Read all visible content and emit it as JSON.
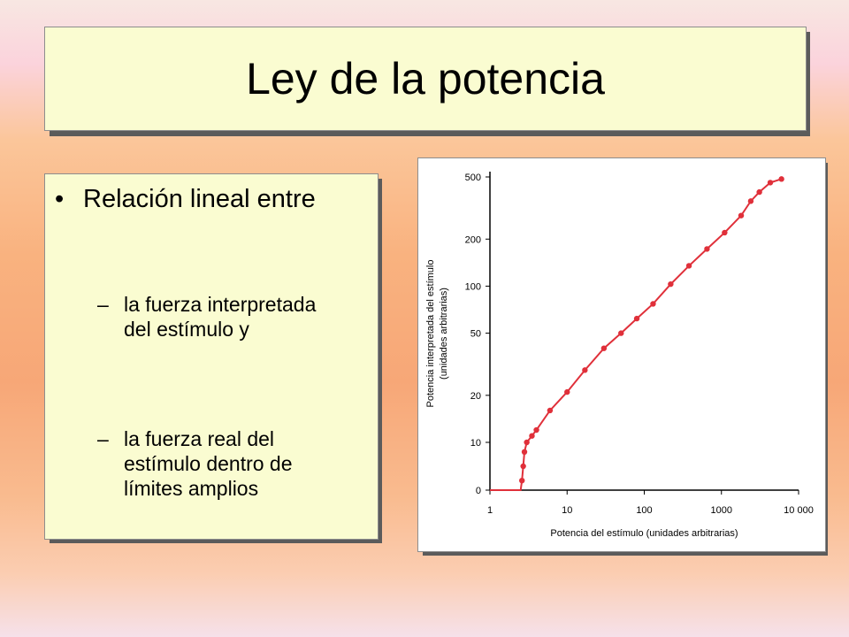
{
  "slide": {
    "title": "Ley de la potencia",
    "bullet": "Relación lineal entre",
    "bullet_marker": "•",
    "sub_marker": "–",
    "sub_items": [
      "la fuerza interpretada del estímulo y",
      "la fuerza real del estímulo dentro de límites amplios"
    ]
  },
  "colors": {
    "panel": "#fafcd1",
    "curve": "#e0303a",
    "axis": "#000000"
  },
  "chart_data": {
    "type": "line",
    "title": "",
    "xlabel": "Potencia del estímulo (unidades arbitrarias)",
    "ylabel": "Potencia interpretada del estímulo (unidades arbitrarias)",
    "xscale": "log",
    "yscale": "log",
    "xlim": [
      1,
      10000
    ],
    "ylim": [
      0,
      500
    ],
    "x_ticks": [
      "1",
      "10",
      "100",
      "1000",
      "10 000"
    ],
    "y_ticks": [
      "0",
      "10",
      "20",
      "50",
      "100",
      "200",
      "500"
    ],
    "grid": false,
    "series": [
      {
        "x": [
          1,
          2.5,
          2.6,
          2.7,
          2.8,
          3.0,
          3.5,
          4.0,
          6.0,
          10,
          17,
          30,
          50,
          80,
          130,
          220,
          380,
          650,
          1100,
          1800,
          2400,
          3100,
          4300,
          6000
        ],
        "y": [
          0,
          0,
          2,
          5,
          8,
          10,
          11,
          12,
          16,
          21,
          29,
          40,
          50,
          62,
          77,
          103,
          135,
          173,
          220,
          283,
          350,
          400,
          460,
          485
        ]
      }
    ]
  }
}
